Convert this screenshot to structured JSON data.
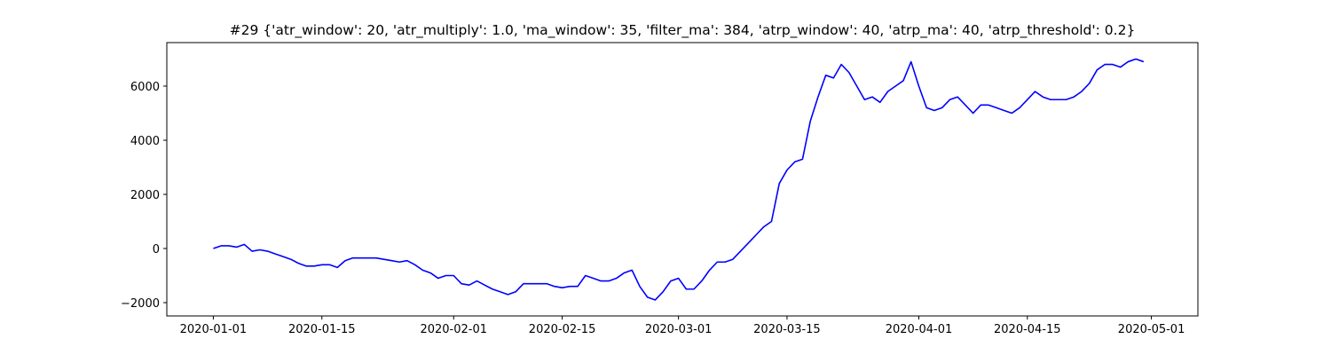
{
  "chart_data": {
    "type": "line",
    "title": "#29 {'atr_window': 20, 'atr_multiply': 1.0, 'ma_window': 35, 'filter_ma': 384, 'atrp_window': 40, 'atrp_ma': 40, 'atrp_threshold': 0.2}",
    "color": "#0000ff",
    "x": [
      "2020-01-01",
      "2020-01-02",
      "2020-01-03",
      "2020-01-04",
      "2020-01-05",
      "2020-01-06",
      "2020-01-07",
      "2020-01-08",
      "2020-01-09",
      "2020-01-10",
      "2020-01-11",
      "2020-01-12",
      "2020-01-13",
      "2020-01-14",
      "2020-01-15",
      "2020-01-16",
      "2020-01-17",
      "2020-01-18",
      "2020-01-19",
      "2020-01-20",
      "2020-01-21",
      "2020-01-22",
      "2020-01-23",
      "2020-01-24",
      "2020-01-25",
      "2020-01-26",
      "2020-01-27",
      "2020-01-28",
      "2020-01-29",
      "2020-01-30",
      "2020-01-31",
      "2020-02-01",
      "2020-02-02",
      "2020-02-03",
      "2020-02-04",
      "2020-02-05",
      "2020-02-06",
      "2020-02-07",
      "2020-02-08",
      "2020-02-09",
      "2020-02-10",
      "2020-02-11",
      "2020-02-12",
      "2020-02-13",
      "2020-02-14",
      "2020-02-15",
      "2020-02-16",
      "2020-02-17",
      "2020-02-18",
      "2020-02-19",
      "2020-02-20",
      "2020-02-21",
      "2020-02-22",
      "2020-02-23",
      "2020-02-24",
      "2020-02-25",
      "2020-02-26",
      "2020-02-27",
      "2020-02-28",
      "2020-02-29",
      "2020-03-01",
      "2020-03-02",
      "2020-03-03",
      "2020-03-04",
      "2020-03-05",
      "2020-03-06",
      "2020-03-07",
      "2020-03-08",
      "2020-03-09",
      "2020-03-10",
      "2020-03-11",
      "2020-03-12",
      "2020-03-13",
      "2020-03-14",
      "2020-03-15",
      "2020-03-16",
      "2020-03-17",
      "2020-03-18",
      "2020-03-19",
      "2020-03-20",
      "2020-03-21",
      "2020-03-22",
      "2020-03-23",
      "2020-03-24",
      "2020-03-25",
      "2020-03-26",
      "2020-03-27",
      "2020-03-28",
      "2020-03-29",
      "2020-03-30",
      "2020-03-31",
      "2020-04-01",
      "2020-04-02",
      "2020-04-03",
      "2020-04-04",
      "2020-04-05",
      "2020-04-06",
      "2020-04-07",
      "2020-04-08",
      "2020-04-09",
      "2020-04-10",
      "2020-04-11",
      "2020-04-12",
      "2020-04-13",
      "2020-04-14",
      "2020-04-15",
      "2020-04-16",
      "2020-04-17",
      "2020-04-18",
      "2020-04-19",
      "2020-04-20",
      "2020-04-21",
      "2020-04-22",
      "2020-04-23",
      "2020-04-24",
      "2020-04-25",
      "2020-04-26",
      "2020-04-27",
      "2020-04-28",
      "2020-04-29",
      "2020-04-30"
    ],
    "values": [
      0,
      100,
      100,
      50,
      150,
      -100,
      -50,
      -100,
      -200,
      -300,
      -400,
      -550,
      -650,
      -650,
      -600,
      -600,
      -700,
      -450,
      -350,
      -350,
      -350,
      -350,
      -400,
      -450,
      -500,
      -450,
      -600,
      -800,
      -900,
      -1100,
      -1000,
      -1000,
      -1300,
      -1350,
      -1200,
      -1350,
      -1500,
      -1600,
      -1700,
      -1600,
      -1300,
      -1300,
      -1300,
      -1300,
      -1400,
      -1450,
      -1400,
      -1400,
      -1000,
      -1100,
      -1200,
      -1200,
      -1100,
      -900,
      -800,
      -1400,
      -1800,
      -1900,
      -1600,
      -1200,
      -1100,
      -1500,
      -1500,
      -1200,
      -800,
      -500,
      -500,
      -400,
      -100,
      200,
      500,
      800,
      1000,
      2400,
      2900,
      3200,
      3300,
      4700,
      5600,
      6400,
      6300,
      6800,
      6500,
      6000,
      5500,
      5600,
      5400,
      5800,
      6000,
      6200,
      6900,
      6000,
      5200,
      5100,
      5200,
      5500,
      5600,
      5300,
      5000,
      5300,
      5300,
      5200,
      5100,
      5000,
      5200,
      5500,
      5800,
      5600,
      5500,
      5500,
      5500,
      5600,
      5800,
      6100,
      6600,
      6800,
      6800,
      6700,
      6900,
      7000,
      6900
    ],
    "xlim": [
      "2019-12-26",
      "2020-05-07"
    ],
    "xticks": [
      "2020-01-01",
      "2020-01-15",
      "2020-02-01",
      "2020-02-15",
      "2020-03-01",
      "2020-03-15",
      "2020-04-01",
      "2020-04-15",
      "2020-05-01"
    ],
    "ylim": [
      -2492,
      7607
    ],
    "yticks": [
      {
        "value": -2000,
        "label": "−2000"
      },
      0,
      2000,
      4000,
      6000
    ],
    "grid": false
  }
}
